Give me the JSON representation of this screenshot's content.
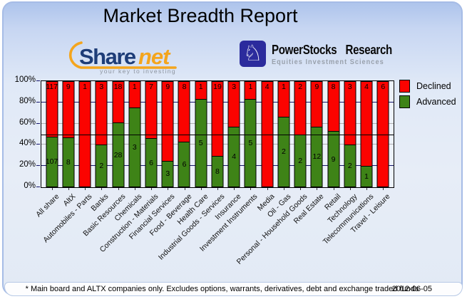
{
  "window": {
    "title": "Market Breadth Report"
  },
  "logos": {
    "sharenet": {
      "part_share": "Share",
      "part_net": "net",
      "tagline": "your key to investing"
    },
    "powerstocks": {
      "icon_glyph": "♘",
      "name": "PowerStocks Research",
      "subtitle": "Equities Investment Sciences"
    }
  },
  "legend": {
    "items": [
      {
        "label": "Declined",
        "color": "#fb0300"
      },
      {
        "label": "Advanced",
        "color": "#3e8317"
      }
    ]
  },
  "footer": {
    "note": "* Main board and ALTX companies only. Excludes options, warrants, derivatives, debt and exchange traded funds",
    "date": "2012-06-05"
  },
  "colors": {
    "declined_red": "#fb0300",
    "advanced_green": "#3e8317",
    "grid_navy": "#14146a",
    "grid_gray": "#b0b0b0",
    "reference_line": "#000000",
    "panel_border": "#a6bce6",
    "panel_top": "#aec4ec",
    "panel_bottom": "#e2eaf5"
  },
  "chart_data": {
    "type": "bar",
    "variant": "100-percent-stacked-column",
    "title": "Market Breadth Report",
    "categories": [
      "All share",
      "AltX",
      "Automobiles - Parts",
      "Banks",
      "Basic Resources",
      "Chemicals",
      "Construction - Materials",
      "Financial Services",
      "Food - Beverage",
      "Health Care",
      "Industrial Goods - Services",
      "Insurance",
      "Investment Instruments",
      "Media",
      "Oil - Gas",
      "Personal - Household Goods",
      "Real Estate",
      "Retail",
      "Technology",
      "Telecommunications",
      "Travel - Leisure"
    ],
    "series": [
      {
        "name": "Declined",
        "color": "#fb0300",
        "values": [
          117,
          9,
          1,
          3,
          18,
          1,
          7,
          9,
          8,
          1,
          19,
          3,
          1,
          4,
          1,
          2,
          9,
          8,
          3,
          4,
          6
        ]
      },
      {
        "name": "Advanced",
        "color": "#3e8317",
        "values": [
          107,
          8,
          0,
          2,
          28,
          3,
          6,
          3,
          6,
          5,
          8,
          4,
          5,
          0,
          2,
          2,
          12,
          9,
          2,
          1,
          0
        ]
      }
    ],
    "advanced_pct": [
      47.8,
      47.1,
      0,
      40,
      60.9,
      75,
      46.2,
      25,
      42.9,
      83.3,
      29.6,
      57.1,
      83.3,
      0,
      66.7,
      50,
      57.1,
      52.9,
      40,
      20,
      0
    ],
    "y_ticks": [
      "0%",
      "20%",
      "40%",
      "60%",
      "80%",
      "100%"
    ],
    "ylim": [
      0,
      100
    ],
    "reference_line_pct": 50,
    "gridlines": {
      "navy_levels": [
        20,
        80
      ],
      "gray_levels": [
        40,
        60
      ]
    },
    "legend_position": "top-right",
    "xlabel": "",
    "ylabel": ""
  }
}
